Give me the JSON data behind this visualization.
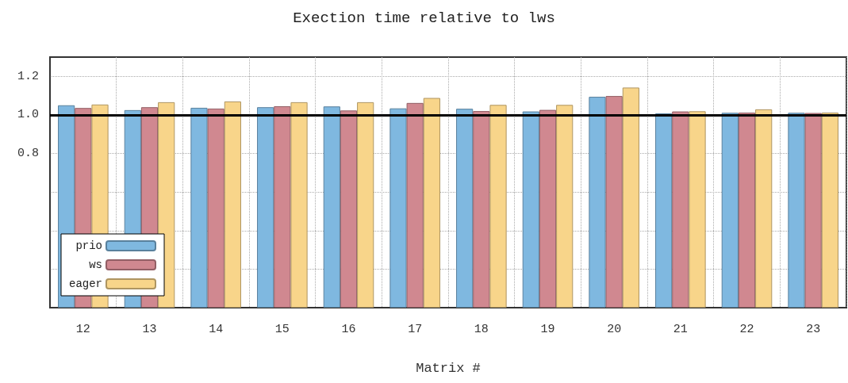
{
  "chart_data": {
    "type": "bar",
    "title": "Exection time relative to lws",
    "xlabel": "Matrix #",
    "categories": [
      "12",
      "13",
      "14",
      "15",
      "16",
      "17",
      "18",
      "19",
      "20",
      "21",
      "22",
      "23"
    ],
    "series": [
      {
        "name": "prio",
        "color": "#7fb8e0",
        "values": [
          1.05,
          1.025,
          1.037,
          1.04,
          1.044,
          1.034,
          1.032,
          1.018,
          1.094,
          1.008,
          1.011,
          1.011
        ]
      },
      {
        "name": "ws",
        "color": "#d08890",
        "values": [
          1.036,
          1.04,
          1.033,
          1.045,
          1.023,
          1.062,
          1.02,
          1.026,
          1.098,
          1.018,
          1.012,
          1.01
        ]
      },
      {
        "name": "eager",
        "color": "#f8d58a",
        "values": [
          1.054,
          1.066,
          1.07,
          1.066,
          1.066,
          1.088,
          1.052,
          1.052,
          1.142,
          1.019,
          1.029,
          1.012
        ]
      }
    ],
    "ylim": [
      0,
      1.3
    ],
    "yticks": [
      {
        "value": 0,
        "label": null
      },
      {
        "value": 0.2,
        "label": null
      },
      {
        "value": 0.4,
        "label": null
      },
      {
        "value": 0.6,
        "label": null
      },
      0.8,
      {
        "value": 1,
        "label": "1.0"
      },
      1.2
    ],
    "ref_lines": [
      {
        "axis": "y",
        "value": 1,
        "color": "#000000"
      }
    ],
    "grid": true,
    "legend": "bottom left"
  }
}
